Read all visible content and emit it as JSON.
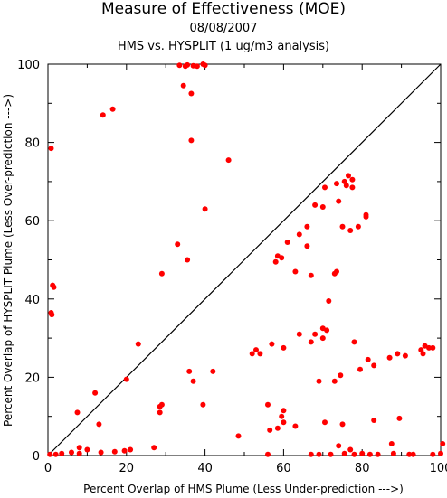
{
  "chart_data": {
    "type": "scatter",
    "title": "Measure of Effectiveness (MOE)",
    "subtitle": "08/08/2007",
    "subtitle2": "HMS vs. HYSPLIT  (1 ug/m3 analysis)",
    "xlabel": "Percent Overlap of HMS Plume (Less Under-prediction --->)",
    "ylabel": "Percent Overlap of HYSPLIT Plume (Less Over-prediction --->)",
    "xlim": [
      0,
      100
    ],
    "ylim": [
      0,
      100
    ],
    "xticks": [
      0,
      20,
      40,
      60,
      80,
      100
    ],
    "yticks": [
      0,
      20,
      40,
      60,
      80,
      100
    ],
    "diagonal": true,
    "grid": false,
    "point_color": "#ff0000",
    "points": [
      [
        0.8,
        78.5
      ],
      [
        1.2,
        43.5
      ],
      [
        1.5,
        43
      ],
      [
        0.8,
        36.5
      ],
      [
        1.0,
        36
      ],
      [
        0.5,
        0.3
      ],
      [
        2,
        0.3
      ],
      [
        3.5,
        0.5
      ],
      [
        6,
        0.8
      ],
      [
        7.5,
        11
      ],
      [
        8,
        2
      ],
      [
        8,
        0.5
      ],
      [
        10,
        1.5
      ],
      [
        12,
        16
      ],
      [
        13,
        8
      ],
      [
        14,
        87
      ],
      [
        13.5,
        0.8
      ],
      [
        16.5,
        88.5
      ],
      [
        17,
        1
      ],
      [
        19.5,
        1.2
      ],
      [
        20,
        19.5
      ],
      [
        21,
        1.5
      ],
      [
        23,
        28.5
      ],
      [
        27,
        2
      ],
      [
        28.5,
        12.5
      ],
      [
        28.5,
        11
      ],
      [
        29,
        13
      ],
      [
        29,
        46.5
      ],
      [
        33,
        54
      ],
      [
        33.5,
        99.7
      ],
      [
        34.5,
        94.5
      ],
      [
        35,
        99.5
      ],
      [
        35.5,
        99.8
      ],
      [
        35.5,
        50
      ],
      [
        36,
        21.5
      ],
      [
        36.5,
        92.5
      ],
      [
        36.5,
        80.5
      ],
      [
        37,
        99.6
      ],
      [
        37,
        19
      ],
      [
        38,
        99.5
      ],
      [
        39.5,
        100
      ],
      [
        40,
        99.7
      ],
      [
        39.5,
        13
      ],
      [
        40,
        63
      ],
      [
        42,
        21.5
      ],
      [
        46,
        75.5
      ],
      [
        48.5,
        5
      ],
      [
        52,
        26
      ],
      [
        53,
        27
      ],
      [
        54,
        26
      ],
      [
        56,
        0.3
      ],
      [
        56,
        13
      ],
      [
        56.5,
        6.5
      ],
      [
        57,
        28.5
      ],
      [
        58,
        49.5
      ],
      [
        58.5,
        51
      ],
      [
        58.5,
        7
      ],
      [
        59.5,
        50.5
      ],
      [
        59.5,
        10
      ],
      [
        60,
        11.5
      ],
      [
        60,
        8.5
      ],
      [
        60,
        27.5
      ],
      [
        61,
        54.5
      ],
      [
        63,
        7.5
      ],
      [
        63,
        47
      ],
      [
        64,
        56.5
      ],
      [
        64,
        31
      ],
      [
        66,
        53.5
      ],
      [
        66,
        58.5
      ],
      [
        67,
        29
      ],
      [
        67,
        0.3
      ],
      [
        67,
        46
      ],
      [
        68,
        64
      ],
      [
        68,
        31
      ],
      [
        69,
        19
      ],
      [
        69,
        0.3
      ],
      [
        70,
        32.5
      ],
      [
        70,
        30
      ],
      [
        70,
        63.5
      ],
      [
        70.5,
        68.5
      ],
      [
        70.5,
        8.5
      ],
      [
        71,
        32
      ],
      [
        71.5,
        39.5
      ],
      [
        72,
        0.3
      ],
      [
        73,
        19
      ],
      [
        73,
        46.5
      ],
      [
        73.5,
        47
      ],
      [
        73.5,
        69.5
      ],
      [
        74,
        65
      ],
      [
        74,
        2.5
      ],
      [
        74.5,
        20.5
      ],
      [
        75,
        8
      ],
      [
        75,
        58.5
      ],
      [
        75.5,
        70
      ],
      [
        75.5,
        0.5
      ],
      [
        76,
        69
      ],
      [
        76.5,
        71.5
      ],
      [
        77,
        57.5
      ],
      [
        77,
        1.5
      ],
      [
        77.5,
        68.5
      ],
      [
        77.5,
        70.5
      ],
      [
        78,
        29
      ],
      [
        78,
        0.3
      ],
      [
        79,
        58.5
      ],
      [
        79.5,
        22
      ],
      [
        80,
        0.5
      ],
      [
        81,
        61
      ],
      [
        81,
        61.5
      ],
      [
        81.5,
        24.5
      ],
      [
        82,
        0.3
      ],
      [
        83,
        9
      ],
      [
        83,
        23
      ],
      [
        84,
        0.3
      ],
      [
        87,
        25
      ],
      [
        87.5,
        3
      ],
      [
        88,
        0.5
      ],
      [
        89,
        26
      ],
      [
        89.5,
        9.5
      ],
      [
        91,
        25.5
      ],
      [
        92,
        0.3
      ],
      [
        93,
        0.3
      ],
      [
        95,
        27
      ],
      [
        95.5,
        26
      ],
      [
        96,
        28
      ],
      [
        97,
        27.5
      ],
      [
        98,
        27.5
      ],
      [
        98,
        0.3
      ],
      [
        100,
        0.5
      ],
      [
        100.5,
        3
      ]
    ]
  }
}
